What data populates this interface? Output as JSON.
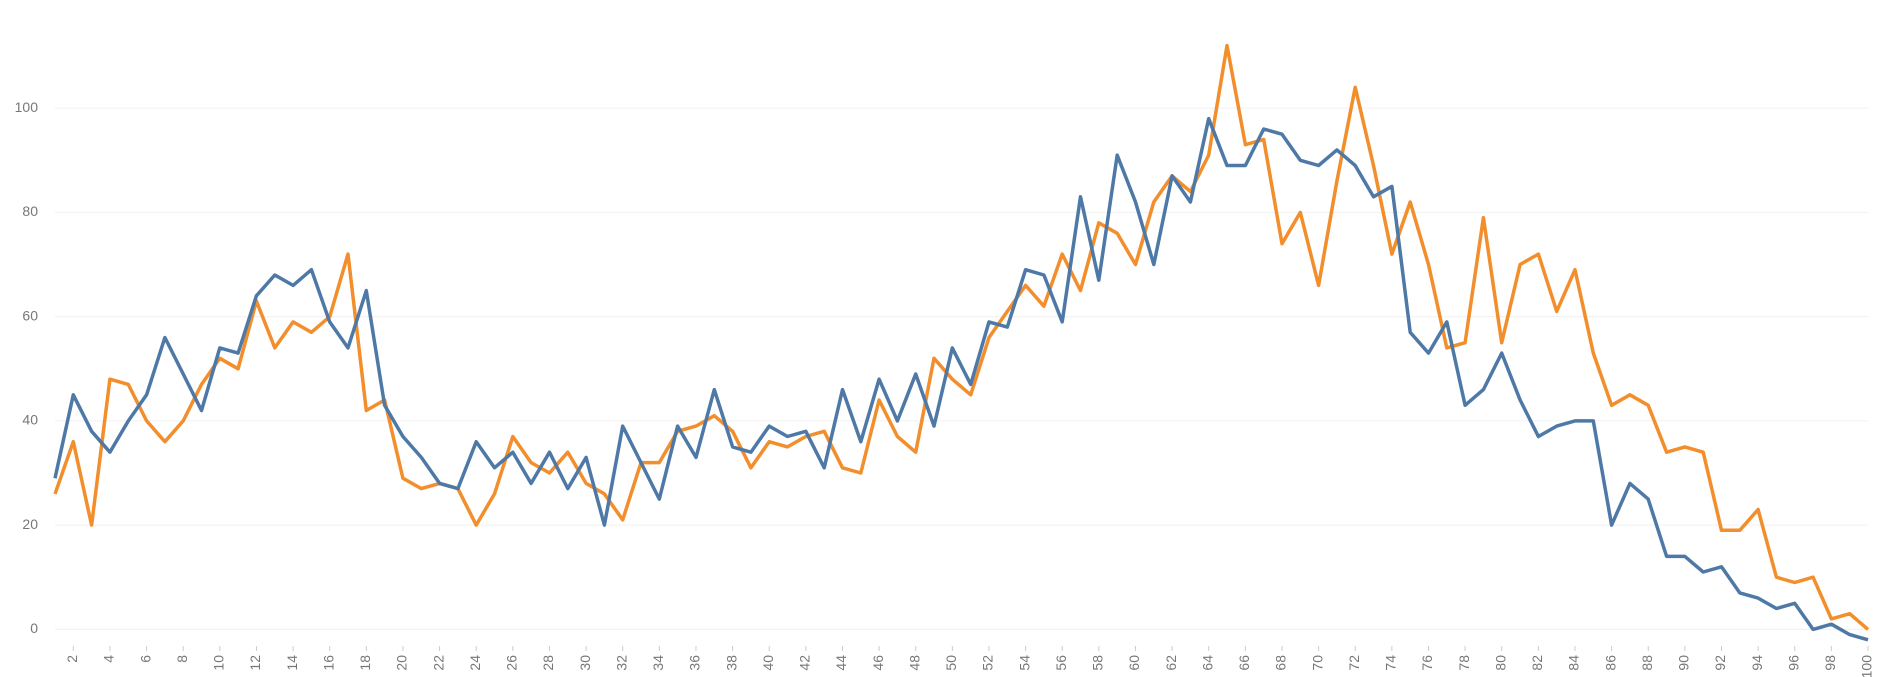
{
  "chart_data": {
    "type": "line",
    "x": [
      1,
      2,
      3,
      4,
      5,
      6,
      7,
      8,
      9,
      10,
      11,
      12,
      13,
      14,
      15,
      16,
      17,
      18,
      19,
      20,
      21,
      22,
      23,
      24,
      25,
      26,
      27,
      28,
      29,
      30,
      31,
      32,
      33,
      34,
      35,
      36,
      37,
      38,
      39,
      40,
      41,
      42,
      43,
      44,
      45,
      46,
      47,
      48,
      49,
      50,
      51,
      52,
      53,
      54,
      55,
      56,
      57,
      58,
      59,
      60,
      61,
      62,
      63,
      64,
      65,
      66,
      67,
      68,
      69,
      70,
      71,
      72,
      73,
      74,
      75,
      76,
      77,
      78,
      79,
      80,
      81,
      82,
      83,
      84,
      85,
      86,
      87,
      88,
      89,
      90,
      91,
      92,
      93,
      94,
      95,
      96,
      97,
      98,
      99,
      100
    ],
    "series": [
      {
        "color": "#f28e2b",
        "values": [
          26,
          36,
          20,
          48,
          47,
          40,
          36,
          40,
          47,
          52,
          50,
          63,
          54,
          59,
          57,
          60,
          72,
          42,
          44,
          29,
          27,
          28,
          27,
          20,
          26,
          37,
          32,
          30,
          34,
          28,
          26,
          21,
          32,
          32,
          38,
          39,
          41,
          38,
          31,
          36,
          35,
          37,
          38,
          31,
          30,
          44,
          37,
          34,
          52,
          48,
          45,
          56,
          61,
          66,
          62,
          72,
          65,
          78,
          76,
          70,
          82,
          87,
          84,
          91,
          112,
          93,
          94,
          74,
          80,
          66,
          86,
          104,
          89,
          72,
          82,
          70,
          54,
          55,
          79,
          55,
          70,
          72,
          61,
          69,
          53,
          43,
          45,
          43,
          34,
          35,
          34,
          19,
          19,
          23,
          10,
          9,
          10,
          2,
          3,
          0
        ]
      },
      {
        "color": "#4e79a7",
        "values": [
          29,
          45,
          38,
          34,
          40,
          45,
          56,
          49,
          42,
          54,
          53,
          64,
          68,
          66,
          69,
          59,
          54,
          65,
          43,
          37,
          33,
          28,
          27,
          36,
          31,
          34,
          28,
          34,
          27,
          33,
          20,
          39,
          32,
          25,
          39,
          33,
          46,
          35,
          34,
          39,
          37,
          38,
          31,
          46,
          36,
          48,
          40,
          49,
          39,
          54,
          47,
          59,
          58,
          69,
          68,
          59,
          83,
          67,
          91,
          82,
          70,
          87,
          82,
          98,
          89,
          89,
          96,
          95,
          90,
          89,
          92,
          89,
          83,
          85,
          57,
          53,
          59,
          43,
          46,
          53,
          44,
          37,
          39,
          40,
          40,
          20,
          28,
          25,
          14,
          14,
          11,
          12,
          7,
          6,
          4,
          5,
          0,
          1,
          -1,
          -2
        ]
      }
    ],
    "xlim": [
      1,
      100
    ],
    "xticks": [
      2,
      4,
      6,
      8,
      10,
      12,
      14,
      16,
      18,
      20,
      22,
      24,
      26,
      28,
      30,
      32,
      34,
      36,
      38,
      40,
      42,
      44,
      46,
      48,
      50,
      52,
      54,
      56,
      58,
      60,
      62,
      64,
      66,
      68,
      70,
      72,
      74,
      76,
      78,
      80,
      82,
      84,
      86,
      88,
      90,
      92,
      94,
      96,
      98,
      100
    ],
    "ylim": [
      -3,
      115
    ],
    "yticks": [
      0,
      20,
      40,
      60,
      80,
      100
    ],
    "grid": true
  }
}
